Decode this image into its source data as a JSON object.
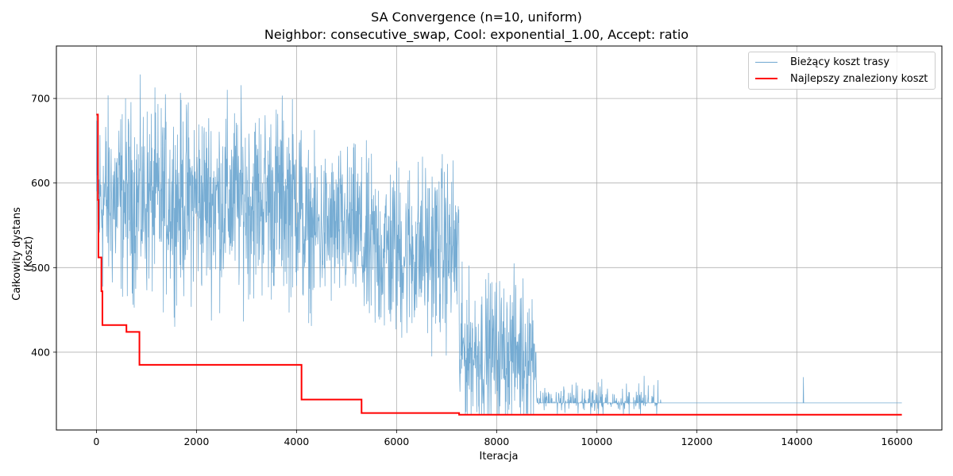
{
  "chart_data": {
    "type": "line",
    "title": "SA Convergence (n=10, uniform)",
    "subtitle": "Neighbor: consecutive_swap, Cool: exponential_1.00, Accept: ratio",
    "xlabel": "Iteracja",
    "ylabel": "Całkowity dystans (Koszt)",
    "xlim": [
      -800,
      16900
    ],
    "ylim": [
      308,
      762
    ],
    "x_ticks": [
      0,
      2000,
      4000,
      6000,
      8000,
      10000,
      12000,
      14000,
      16000
    ],
    "y_ticks": [
      400,
      500,
      600,
      700
    ],
    "grid": true,
    "legend_position": "top-right",
    "series": [
      {
        "name": "Bieżący koszt trasy",
        "color": "#6fa8d1",
        "description": "noisy current route cost",
        "segments": [
          {
            "x0": 0,
            "x1": 4100,
            "mean": 580,
            "spread": 85,
            "min": 430,
            "max": 740
          },
          {
            "x0": 4100,
            "x1": 5300,
            "mean": 545,
            "spread": 70,
            "min": 400,
            "max": 680
          },
          {
            "x0": 5300,
            "x1": 7250,
            "mean": 520,
            "spread": 80,
            "min": 395,
            "max": 700
          },
          {
            "x0": 7250,
            "x1": 8800,
            "mean": 400,
            "spread": 65,
            "min": 326,
            "max": 520
          },
          {
            "x0": 8800,
            "x1": 11300,
            "mean": 345,
            "spread": 15,
            "min": 326,
            "max": 432
          },
          {
            "x0": 11300,
            "x1": 16100,
            "mean": 340,
            "spread": 0,
            "min": 326,
            "max": 400
          }
        ],
        "final_value": 340
      },
      {
        "name": "Najlepszy znaleziony koszt",
        "color": "#ff0000",
        "steps": [
          [
            0,
            681
          ],
          [
            30,
            580
          ],
          [
            40,
            512
          ],
          [
            100,
            472
          ],
          [
            120,
            432
          ],
          [
            600,
            424
          ],
          [
            860,
            385
          ],
          [
            4100,
            344
          ],
          [
            5300,
            328
          ],
          [
            7250,
            326
          ],
          [
            16100,
            326
          ]
        ]
      }
    ]
  }
}
